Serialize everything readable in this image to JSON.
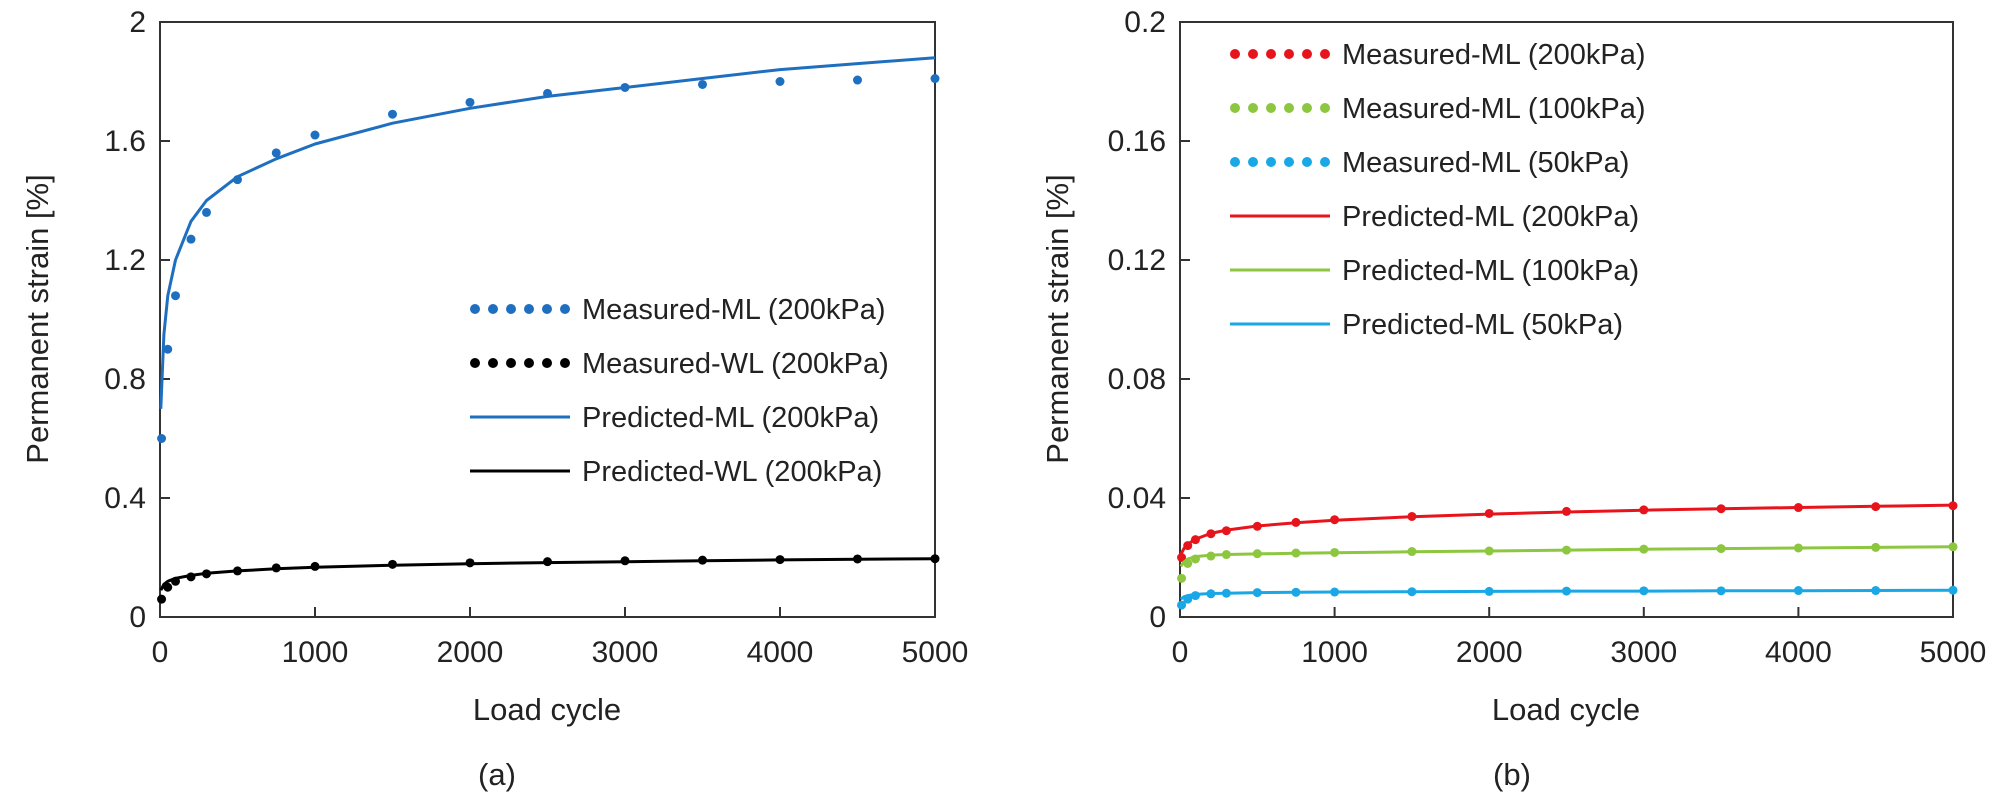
{
  "chart_data": [
    {
      "type": "line",
      "panel_label": "(a)",
      "xlabel": "Load cycle",
      "ylabel": "Permanent strain [%]",
      "xlim": [
        0,
        5000
      ],
      "ylim": [
        0,
        2
      ],
      "xticks": [
        "0",
        "1000",
        "2000",
        "3000",
        "4000",
        "5000"
      ],
      "yticks": [
        "0",
        "0.4",
        "0.8",
        "1.2",
        "1.6",
        "2"
      ],
      "grid": false,
      "legend_position": "center-right",
      "series": [
        {
          "name": "Measured-ML (200kPa)",
          "style": "dotted",
          "color": "#1f6fc0",
          "x": [
            10,
            50,
            100,
            200,
            300,
            500,
            750,
            1000,
            1500,
            2000,
            2500,
            3000,
            3500,
            4000,
            4500,
            5000
          ],
          "y": [
            0.6,
            0.9,
            1.08,
            1.27,
            1.36,
            1.47,
            1.56,
            1.62,
            1.69,
            1.73,
            1.76,
            1.78,
            1.79,
            1.8,
            1.805,
            1.81
          ]
        },
        {
          "name": "Measured-WL (200kPa)",
          "style": "dotted",
          "color": "#000000",
          "x": [
            10,
            50,
            100,
            200,
            300,
            500,
            750,
            1000,
            1500,
            2000,
            2500,
            3000,
            3500,
            4000,
            4500,
            5000
          ],
          "y": [
            0.06,
            0.1,
            0.12,
            0.135,
            0.145,
            0.155,
            0.165,
            0.17,
            0.177,
            0.182,
            0.186,
            0.189,
            0.191,
            0.193,
            0.195,
            0.196
          ]
        },
        {
          "name": "Predicted-ML (200kPa)",
          "style": "solid",
          "color": "#1f6fc0",
          "x": [
            5,
            25,
            50,
            100,
            200,
            300,
            500,
            750,
            1000,
            1500,
            2000,
            2500,
            3000,
            3500,
            4000,
            4500,
            5000
          ],
          "y": [
            0.7,
            0.95,
            1.08,
            1.2,
            1.33,
            1.4,
            1.48,
            1.54,
            1.59,
            1.66,
            1.71,
            1.75,
            1.78,
            1.81,
            1.84,
            1.86,
            1.88
          ]
        },
        {
          "name": "Predicted-WL (200kPa)",
          "style": "solid",
          "color": "#000000",
          "x": [
            5,
            25,
            50,
            100,
            200,
            300,
            500,
            750,
            1000,
            1500,
            2000,
            2500,
            3000,
            3500,
            4000,
            4500,
            5000
          ],
          "y": [
            0.09,
            0.11,
            0.12,
            0.13,
            0.14,
            0.147,
            0.155,
            0.162,
            0.167,
            0.174,
            0.179,
            0.183,
            0.186,
            0.189,
            0.192,
            0.194,
            0.196
          ]
        }
      ]
    },
    {
      "type": "line",
      "panel_label": "(b)",
      "xlabel": "Load cycle",
      "ylabel": "Permanent strain [%]",
      "xlim": [
        0,
        5000
      ],
      "ylim": [
        0,
        0.2
      ],
      "xticks": [
        "0",
        "1000",
        "2000",
        "3000",
        "4000",
        "5000"
      ],
      "yticks": [
        "0",
        "0.04",
        "0.08",
        "0.12",
        "0.16",
        "0.2"
      ],
      "grid": false,
      "legend_position": "top-left",
      "series": [
        {
          "name": "Measured-ML (200kPa)",
          "style": "dotted",
          "color": "#e8141c",
          "x": [
            10,
            50,
            100,
            200,
            300,
            500,
            750,
            1000,
            1500,
            2000,
            2500,
            3000,
            3500,
            4000,
            4500,
            5000
          ],
          "y": [
            0.02,
            0.024,
            0.026,
            0.028,
            0.029,
            0.0305,
            0.0318,
            0.0327,
            0.0338,
            0.0348,
            0.0355,
            0.036,
            0.0364,
            0.0368,
            0.0371,
            0.0374
          ]
        },
        {
          "name": "Measured-ML (100kPa)",
          "style": "dotted",
          "color": "#8dc63f",
          "x": [
            10,
            50,
            100,
            200,
            300,
            500,
            750,
            1000,
            1500,
            2000,
            2500,
            3000,
            3500,
            4000,
            4500,
            5000
          ],
          "y": [
            0.013,
            0.018,
            0.0195,
            0.0205,
            0.021,
            0.0213,
            0.0215,
            0.0217,
            0.022,
            0.0222,
            0.0225,
            0.0228,
            0.023,
            0.0232,
            0.0234,
            0.0236
          ]
        },
        {
          "name": "Measured-ML (50kPa)",
          "style": "dotted",
          "color": "#1aa7e6",
          "x": [
            10,
            50,
            100,
            200,
            300,
            500,
            750,
            1000,
            1500,
            2000,
            2500,
            3000,
            3500,
            4000,
            4500,
            5000
          ],
          "y": [
            0.004,
            0.006,
            0.0072,
            0.0078,
            0.008,
            0.0082,
            0.0083,
            0.0084,
            0.0085,
            0.0086,
            0.0087,
            0.0088,
            0.0088,
            0.0089,
            0.0089,
            0.009
          ]
        },
        {
          "name": "Predicted-ML (200kPa)",
          "style": "solid",
          "color": "#e8141c",
          "x": [
            5,
            25,
            50,
            100,
            200,
            300,
            500,
            750,
            1000,
            1500,
            2000,
            2500,
            3000,
            3500,
            4000,
            4500,
            5000
          ],
          "y": [
            0.021,
            0.023,
            0.0245,
            0.0262,
            0.0281,
            0.0292,
            0.0306,
            0.0317,
            0.0325,
            0.0337,
            0.0346,
            0.0353,
            0.0359,
            0.0364,
            0.0368,
            0.0372,
            0.0376
          ]
        },
        {
          "name": "Predicted-ML (100kPa)",
          "style": "solid",
          "color": "#8dc63f",
          "x": [
            5,
            25,
            50,
            100,
            200,
            300,
            500,
            750,
            1000,
            1500,
            2000,
            2500,
            3000,
            3500,
            4000,
            4500,
            5000
          ],
          "y": [
            0.017,
            0.0185,
            0.0195,
            0.0203,
            0.0208,
            0.021,
            0.0212,
            0.0214,
            0.0216,
            0.0219,
            0.0222,
            0.0225,
            0.0228,
            0.023,
            0.0232,
            0.0234,
            0.0236
          ]
        },
        {
          "name": "Predicted-ML (50kPa)",
          "style": "solid",
          "color": "#1aa7e6",
          "x": [
            5,
            25,
            50,
            100,
            200,
            300,
            500,
            750,
            1000,
            1500,
            2000,
            2500,
            3000,
            3500,
            4000,
            4500,
            5000
          ],
          "y": [
            0.006,
            0.0068,
            0.0072,
            0.0076,
            0.0079,
            0.008,
            0.0082,
            0.0083,
            0.0084,
            0.0085,
            0.0086,
            0.0087,
            0.0087,
            0.0088,
            0.0088,
            0.0089,
            0.009
          ]
        }
      ]
    }
  ]
}
